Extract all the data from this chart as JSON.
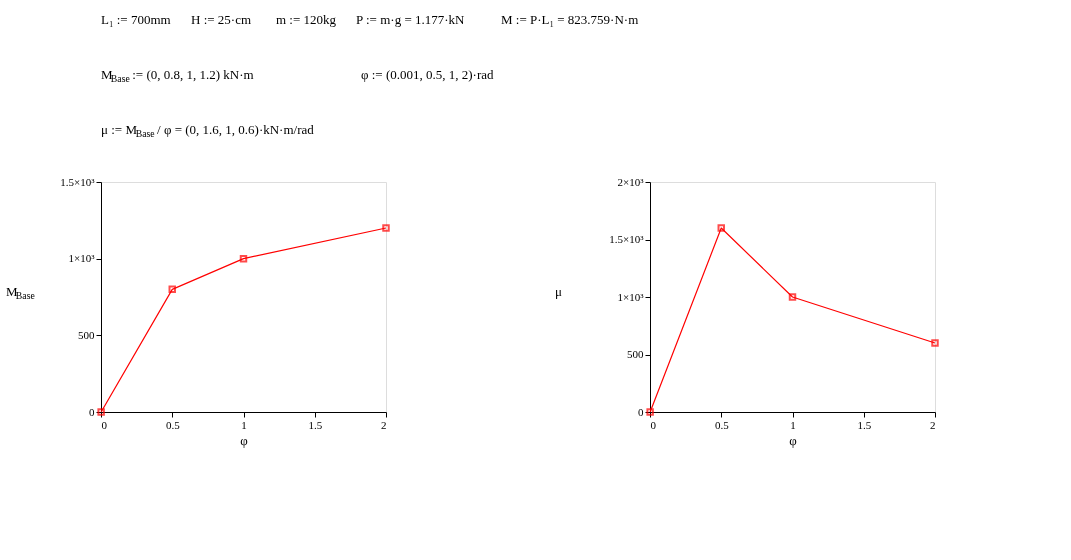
{
  "chart_data": [
    {
      "type": "line",
      "xlabel": "φ",
      "ylabel": "M$_{Base}$",
      "x": [
        0.001,
        0.5,
        1,
        2
      ],
      "series": [
        {
          "color": "#ff0000",
          "values": [
            0,
            800,
            1000,
            1200
          ]
        }
      ],
      "xlim": [
        0,
        2
      ],
      "xticks": [
        0,
        0.5,
        1,
        1.5,
        2
      ],
      "ylim": [
        0,
        1500
      ],
      "yticks": [
        0,
        500,
        {
          "value": 1000,
          "label": "1×10³"
        },
        {
          "value": 1500,
          "label": "1.5×10³"
        }
      ],
      "marker": "square",
      "line_style": "solid",
      "annotations": [
        "L₁ := 700mm",
        "H := 25·cm",
        "m := 120kg",
        "P := m·g = 1.177·kN",
        "M := P·L₁ = 823.759·N·m",
        "M$_{Base}$ := (0, 0.8, 1, 1.2) kN·m",
        "φ := (0.001, 0.5, 1, 2)·rad",
        "μ := M$_{Base}$ / φ = (0, 1.6, 1, 0.6)·kN·m/rad"
      ]
    },
    {
      "type": "line",
      "xlabel": "φ",
      "ylabel": "μ",
      "x": [
        0.001,
        0.5,
        1,
        2
      ],
      "series": [
        {
          "color": "#ff0000",
          "values": [
            0,
            1600,
            1000,
            600
          ]
        }
      ],
      "xlim": [
        0,
        2
      ],
      "xticks": [
        0,
        0.5,
        1,
        1.5,
        2
      ],
      "ylim": [
        0,
        2000
      ],
      "yticks": [
        0,
        500,
        {
          "value": 1000,
          "label": "1×10³"
        },
        {
          "value": 1500,
          "label": "1.5×10³"
        },
        {
          "value": 2000,
          "label": "2×10³"
        }
      ],
      "marker": "square",
      "line_style": "solid"
    }
  ]
}
